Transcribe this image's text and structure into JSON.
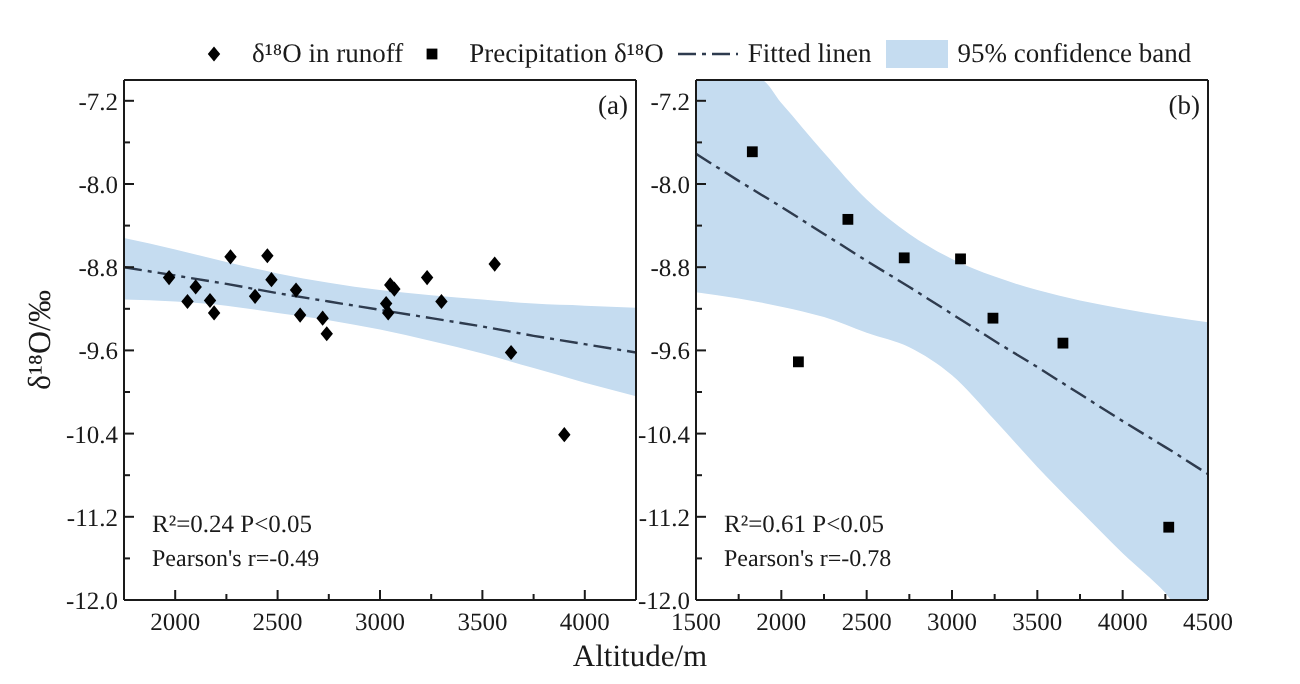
{
  "chart_data": [
    {
      "type": "scatter",
      "title": "(a)",
      "xlabel": "Altitude/m",
      "ylabel": "δ¹⁸O/‰",
      "annotations": [
        "R²=0.24  P<0.05",
        "Pearson's r=-0.49"
      ],
      "legend": "top",
      "xlim": [
        1750,
        4250
      ],
      "xticks": [
        2000,
        {
          "value": 2250,
          "label": null
        },
        2500,
        {
          "value": 2750,
          "label": null
        },
        3000,
        {
          "value": 3250,
          "label": null
        },
        3500,
        {
          "value": 3750,
          "label": null
        },
        4000
      ],
      "ylim": [
        -12,
        -7
      ],
      "yticks": [
        {
          "value": -12,
          "label": "-12.0"
        },
        {
          "value": -11.6,
          "label": null
        },
        -11.2,
        {
          "value": -10.8,
          "label": null
        },
        -10.4,
        {
          "value": -10,
          "label": null
        },
        -9.6,
        {
          "value": -9.2,
          "label": null
        },
        -8.8,
        {
          "value": -8.4,
          "label": null
        },
        {
          "value": -8,
          "label": "-8.0"
        },
        {
          "value": -7.6,
          "label": null
        },
        -7.2
      ],
      "series": [
        {
          "name": "δ¹⁸O in runoff",
          "type": "scatter",
          "marker": "diamond",
          "color": "#000000",
          "x": [
            1970,
            2060,
            2100,
            2170,
            2190,
            2270,
            2390,
            2450,
            2470,
            2590,
            2610,
            2720,
            2740,
            3030,
            3040,
            3050,
            3070,
            3230,
            3300,
            3560,
            3640,
            3900
          ],
          "values": [
            -8.9,
            -9.13,
            -8.99,
            -9.12,
            -9.24,
            -8.7,
            -9.08,
            -8.69,
            -8.92,
            -9.02,
            -9.26,
            -9.29,
            -9.44,
            -9.15,
            -9.24,
            -8.97,
            -9.01,
            -8.9,
            -9.13,
            -8.77,
            -9.62,
            -10.41
          ]
        },
        {
          "name": "Fitted linen",
          "type": "line",
          "line_style": "dashed",
          "color": "#2e3b4e",
          "x": [
            1750,
            2000,
            2250,
            2500,
            2750,
            3000,
            3250,
            3500,
            3750,
            4000,
            4250
          ],
          "values": [
            -8.8,
            -8.88,
            -8.96,
            -9.05,
            -9.13,
            -9.21,
            -9.29,
            -9.37,
            -9.46,
            -9.54,
            -9.62
          ],
          "upper": [
            -8.52,
            -8.63,
            -8.75,
            -8.86,
            -8.95,
            -9.02,
            -9.07,
            -9.11,
            -9.15,
            -9.17,
            -9.19
          ],
          "lower": [
            -9.11,
            -9.13,
            -9.17,
            -9.24,
            -9.31,
            -9.4,
            -9.51,
            -9.63,
            -9.77,
            -9.91,
            -10.04
          ]
        },
        {
          "name": "95% confidence band",
          "type": "area",
          "color": "#c5dcf0"
        }
      ]
    },
    {
      "type": "scatter",
      "title": "(b)",
      "annotations": [
        "R²=0.61  P<0.05",
        "Pearson's r=-0.78"
      ],
      "legend": "top",
      "xlim": [
        1500,
        4500
      ],
      "xticks": [
        1500,
        {
          "value": 1750,
          "label": null
        },
        2000,
        {
          "value": 2250,
          "label": null
        },
        2500,
        {
          "value": 2750,
          "label": null
        },
        3000,
        {
          "value": 3250,
          "label": null
        },
        3500,
        {
          "value": 3750,
          "label": null
        },
        4000,
        {
          "value": 4250,
          "label": null
        },
        4500
      ],
      "ylim": [
        -12,
        -7
      ],
      "yticks": [
        {
          "value": -12,
          "label": "-12.0"
        },
        {
          "value": -11.6,
          "label": null
        },
        -11.2,
        {
          "value": -10.8,
          "label": null
        },
        -10.4,
        {
          "value": -10,
          "label": null
        },
        -9.6,
        {
          "value": -9.2,
          "label": null
        },
        -8.8,
        {
          "value": -8.4,
          "label": null
        },
        {
          "value": -8,
          "label": "-8.0"
        },
        {
          "value": -7.6,
          "label": null
        },
        -7.2
      ],
      "series": [
        {
          "name": "Precipitation δ¹⁸O",
          "type": "scatter",
          "marker": "square",
          "color": "#000000",
          "x": [
            1830,
            2100,
            2390,
            2720,
            3050,
            3240,
            3650,
            4270
          ],
          "values": [
            -7.69,
            -9.71,
            -8.34,
            -8.71,
            -8.72,
            -9.29,
            -9.53,
            -11.3
          ]
        },
        {
          "type": "line",
          "line_style": "dashed",
          "color": "#2e3b4e",
          "x": [
            1500,
            1750,
            1880,
            2000,
            2250,
            2500,
            2750,
            3000,
            3250,
            3500,
            3750,
            4000,
            4250,
            4290,
            4500
          ],
          "values": [
            -7.71,
            -7.97,
            -8.1,
            -8.22,
            -8.48,
            -8.74,
            -8.99,
            -9.25,
            -9.51,
            -9.76,
            -10.02,
            -10.28,
            -10.53,
            -10.57,
            -10.79
          ],
          "upper": [
            -7.0,
            -7.0,
            -7.0,
            -7.22,
            -7.7,
            -8.15,
            -8.48,
            -8.72,
            -8.89,
            -9.02,
            -9.12,
            -9.2,
            -9.27,
            -9.28,
            -9.33
          ],
          "lower": [
            -9.04,
            -9.1,
            -9.14,
            -9.18,
            -9.28,
            -9.43,
            -9.57,
            -9.84,
            -10.27,
            -10.72,
            -11.14,
            -11.55,
            -11.93,
            -12.0,
            -12.0
          ]
        },
        {
          "type": "area",
          "color": "#c5dcf0"
        }
      ]
    }
  ]
}
